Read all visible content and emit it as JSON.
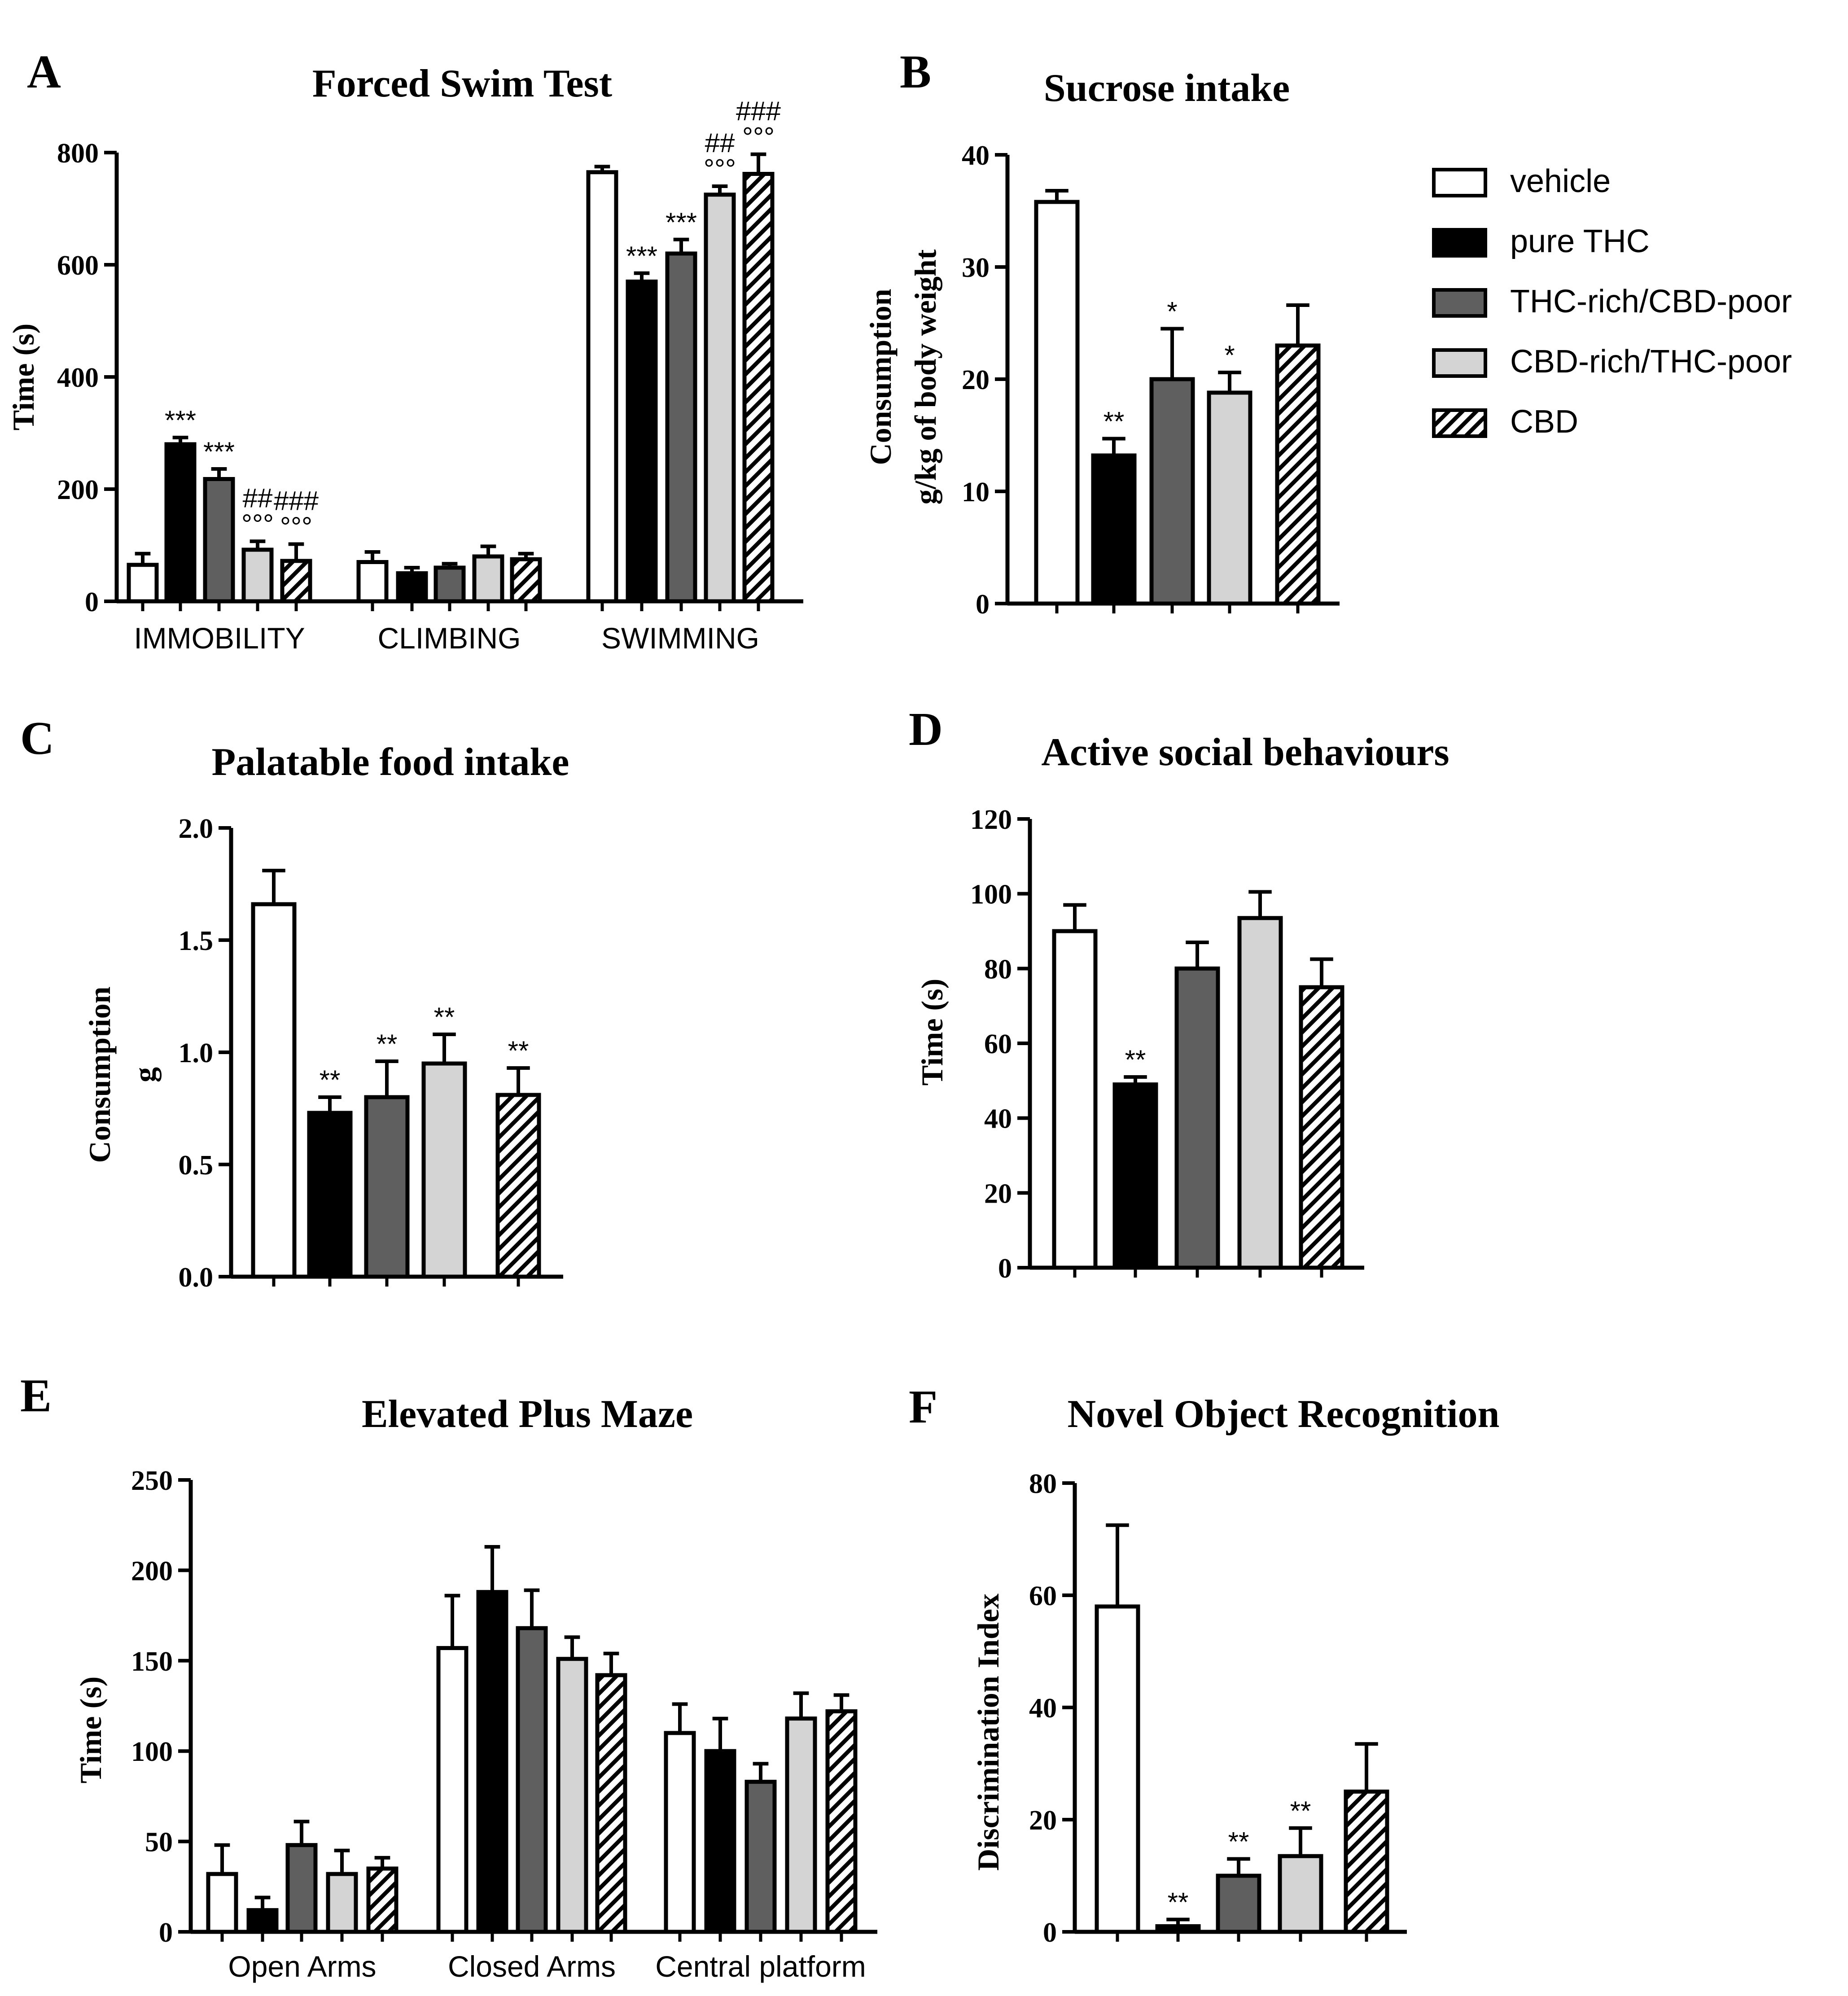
{
  "legend": [
    {
      "key": "vehicle",
      "label": "vehicle",
      "color": "#ffffff",
      "pattern": "none"
    },
    {
      "key": "pure",
      "label": "pure THC",
      "color": "#000000",
      "pattern": "none"
    },
    {
      "key": "thcrich",
      "label": "THC-rich/CBD-poor",
      "color": "#5f5f5f",
      "pattern": "none"
    },
    {
      "key": "cbdrich",
      "label": "CBD-rich/THC-poor",
      "color": "#d4d4d4",
      "pattern": "none"
    },
    {
      "key": "cbd",
      "label": "CBD",
      "color": "#ffffff",
      "pattern": "hatch"
    }
  ],
  "chart_data": [
    {
      "panel": "A",
      "type": "bar",
      "title": "Forced Swim Test",
      "ylabel": "Time (s)",
      "xlabel": "",
      "ylim": [
        0,
        800
      ],
      "yticks": [
        0,
        200,
        400,
        600,
        800
      ],
      "categories": [
        "IMMOBILITY",
        "CLIMBING",
        "SWIMMING"
      ],
      "series": [
        {
          "name": "vehicle",
          "values": [
            65,
            70,
            765
          ],
          "errors": [
            20,
            18,
            10
          ],
          "marks": [
            "",
            "",
            ""
          ]
        },
        {
          "name": "pure THC",
          "values": [
            280,
            50,
            570
          ],
          "errors": [
            12,
            10,
            15
          ],
          "marks": [
            "***",
            "",
            "***"
          ]
        },
        {
          "name": "THC-rich/CBD-poor",
          "values": [
            218,
            60,
            620
          ],
          "errors": [
            18,
            7,
            25
          ],
          "marks": [
            "***",
            "",
            "***"
          ]
        },
        {
          "name": "CBD-rich/THC-poor",
          "values": [
            92,
            80,
            725
          ],
          "errors": [
            15,
            18,
            15
          ],
          "marks": [
            "##|°°°",
            "",
            "##|°°°"
          ]
        },
        {
          "name": "CBD",
          "values": [
            72,
            75,
            762
          ],
          "errors": [
            30,
            10,
            35
          ],
          "marks": [
            "###|°°°",
            "",
            "###|°°°"
          ]
        }
      ]
    },
    {
      "panel": "B",
      "type": "bar",
      "title": "Sucrose intake",
      "ylabel": "Consumption",
      "ylabel2": "g/kg of body weight",
      "ylim": [
        0,
        40
      ],
      "yticks": [
        0,
        10,
        20,
        30,
        40
      ],
      "categories": [
        ""
      ],
      "series": [
        {
          "name": "vehicle",
          "values": [
            35.8
          ],
          "errors": [
            1.0
          ],
          "marks": [
            ""
          ]
        },
        {
          "name": "pure THC",
          "values": [
            13.2
          ],
          "errors": [
            1.5
          ],
          "marks": [
            "**"
          ]
        },
        {
          "name": "THC-rich/CBD-poor",
          "values": [
            20.0
          ],
          "errors": [
            4.5
          ],
          "marks": [
            "*"
          ]
        },
        {
          "name": "CBD-rich/THC-poor",
          "values": [
            18.8
          ],
          "errors": [
            1.8
          ],
          "marks": [
            "*"
          ]
        },
        {
          "name": "CBD",
          "values": [
            23.0
          ],
          "errors": [
            3.6
          ],
          "marks": [
            ""
          ]
        }
      ]
    },
    {
      "panel": "C",
      "type": "bar",
      "title": "Palatable food intake",
      "ylabel": "Consumption",
      "ylabel2": "g",
      "ylim": [
        0,
        2.0
      ],
      "yticks": [
        "0.0",
        "0.5",
        "1.0",
        "1.5",
        "2.0"
      ],
      "categories": [
        ""
      ],
      "series": [
        {
          "name": "vehicle",
          "values": [
            1.66
          ],
          "errors": [
            0.15
          ],
          "marks": [
            ""
          ]
        },
        {
          "name": "pure THC",
          "values": [
            0.73
          ],
          "errors": [
            0.07
          ],
          "marks": [
            "**"
          ]
        },
        {
          "name": "THC-rich/CBD-poor",
          "values": [
            0.8
          ],
          "errors": [
            0.16
          ],
          "marks": [
            "**"
          ]
        },
        {
          "name": "CBD-rich/THC-poor",
          "values": [
            0.95
          ],
          "errors": [
            0.13
          ],
          "marks": [
            "**"
          ]
        },
        {
          "name": "CBD",
          "values": [
            0.81
          ],
          "errors": [
            0.12
          ],
          "marks": [
            "**"
          ]
        }
      ]
    },
    {
      "panel": "D",
      "type": "bar",
      "title": "Active social behaviours",
      "ylabel": "Time (s)",
      "ylim": [
        0,
        120
      ],
      "yticks": [
        0,
        20,
        40,
        60,
        80,
        100,
        120
      ],
      "categories": [
        ""
      ],
      "series": [
        {
          "name": "vehicle",
          "values": [
            90
          ],
          "errors": [
            7
          ],
          "marks": [
            ""
          ]
        },
        {
          "name": "pure THC",
          "values": [
            49
          ],
          "errors": [
            2
          ],
          "marks": [
            "**"
          ]
        },
        {
          "name": "THC-rich/CBD-poor",
          "values": [
            80
          ],
          "errors": [
            7
          ],
          "marks": [
            ""
          ]
        },
        {
          "name": "CBD-rich/THC-poor",
          "values": [
            93.5
          ],
          "errors": [
            7
          ],
          "marks": [
            ""
          ]
        },
        {
          "name": "CBD",
          "values": [
            75
          ],
          "errors": [
            7.5
          ],
          "marks": [
            ""
          ]
        }
      ]
    },
    {
      "panel": "E",
      "type": "bar",
      "title": "Elevated Plus Maze",
      "ylabel": "Time (s)",
      "ylim": [
        0,
        250
      ],
      "yticks": [
        0,
        50,
        100,
        150,
        200,
        250
      ],
      "categories": [
        "Open Arms",
        "Closed Arms",
        "Central platform"
      ],
      "series": [
        {
          "name": "vehicle",
          "values": [
            32,
            157,
            110
          ],
          "errors": [
            16,
            29,
            16
          ],
          "marks": [
            "",
            "",
            ""
          ]
        },
        {
          "name": "pure THC",
          "values": [
            12,
            188,
            100
          ],
          "errors": [
            7,
            25,
            18
          ],
          "marks": [
            "",
            "",
            ""
          ]
        },
        {
          "name": "THC-rich/CBD-poor",
          "values": [
            48,
            168,
            83
          ],
          "errors": [
            13,
            21,
            10
          ],
          "marks": [
            "",
            "",
            ""
          ]
        },
        {
          "name": "CBD-rich/THC-poor",
          "values": [
            32,
            151,
            118
          ],
          "errors": [
            13,
            12,
            14
          ],
          "marks": [
            "",
            "",
            ""
          ]
        },
        {
          "name": "CBD",
          "values": [
            35,
            142,
            122
          ],
          "errors": [
            6,
            12,
            9
          ],
          "marks": [
            "",
            "",
            ""
          ]
        }
      ]
    },
    {
      "panel": "F",
      "type": "bar",
      "title": "Novel Object Recognition",
      "ylabel": "Discrimination Index",
      "ylim": [
        0,
        80
      ],
      "yticks": [
        0,
        20,
        40,
        60,
        80
      ],
      "categories": [
        ""
      ],
      "series": [
        {
          "name": "vehicle",
          "values": [
            58
          ],
          "errors": [
            14.5
          ],
          "marks": [
            ""
          ]
        },
        {
          "name": "pure THC",
          "values": [
            1
          ],
          "errors": [
            1.2
          ],
          "marks": [
            "**"
          ]
        },
        {
          "name": "THC-rich/CBD-poor",
          "values": [
            10
          ],
          "errors": [
            3
          ],
          "marks": [
            "**"
          ]
        },
        {
          "name": "CBD-rich/THC-poor",
          "values": [
            13.5
          ],
          "errors": [
            5
          ],
          "marks": [
            "**"
          ]
        },
        {
          "name": "CBD",
          "values": [
            25
          ],
          "errors": [
            8.5
          ],
          "marks": [
            ""
          ]
        }
      ]
    }
  ]
}
